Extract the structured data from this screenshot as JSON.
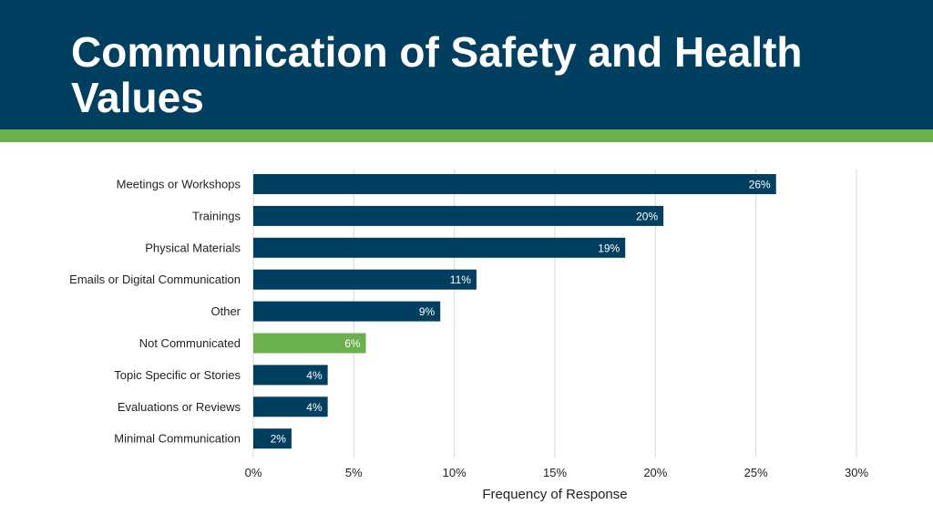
{
  "header": {
    "title": "Communication of Safety and Health Values"
  },
  "colors": {
    "header_bg": "#003f5f",
    "accent": "#6ab04c",
    "bar_default": "#003f5f",
    "bar_highlight": "#6ab04c",
    "grid": "#d9d9d9"
  },
  "chart_data": {
    "type": "bar",
    "orientation": "horizontal",
    "categories": [
      "Meetings or Workshops",
      "Trainings",
      "Physical Materials",
      "Emails or Digital Communication",
      "Other",
      "Not Communicated",
      "Topic Specific or Stories",
      "Evaluations or Reviews",
      "Minimal Communication"
    ],
    "values": [
      26,
      20.4,
      18.5,
      11.1,
      9.3,
      5.6,
      3.7,
      3.7,
      1.9
    ],
    "data_labels": [
      "26%",
      "20%",
      "19%",
      "11%",
      "9%",
      "6%",
      "4%",
      "4%",
      "2%"
    ],
    "highlight_index": 5,
    "xlabel": "Frequency of Response",
    "ylabel": "",
    "xlim": [
      0,
      30
    ],
    "xticks": [
      0,
      5,
      10,
      15,
      20,
      25,
      30
    ],
    "xtick_labels": [
      "0%",
      "5%",
      "10%",
      "15%",
      "20%",
      "25%",
      "30%"
    ],
    "grid": true
  }
}
